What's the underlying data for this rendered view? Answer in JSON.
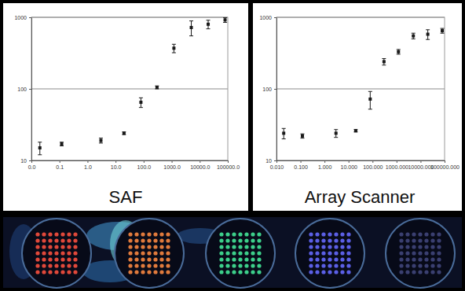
{
  "chart_data": [
    {
      "type": "scatter",
      "title": "SAF",
      "x": [
        0.02,
        0.12,
        3,
        20,
        80,
        300,
        1200,
        5000,
        20000,
        80000
      ],
      "values": [
        15,
        17,
        19,
        24,
        65,
        105,
        370,
        720,
        800,
        920
      ],
      "errors": [
        3,
        1,
        1.5,
        1,
        10,
        5,
        50,
        170,
        110,
        70
      ],
      "color": "#1a1a1a",
      "marker": "square",
      "log": true,
      "grid": true,
      "xlim": [
        0.01,
        100000
      ],
      "ylim": [
        10,
        1000
      ],
      "xticks": [
        {
          "value": 0.01,
          "label": "0.0"
        },
        {
          "value": 0.1,
          "label": "0.1"
        },
        {
          "value": 1,
          "label": "1.0"
        },
        {
          "value": 10,
          "label": "10.0"
        },
        {
          "value": 100,
          "label": "100.0"
        },
        {
          "value": 1000,
          "label": "1000.0"
        },
        {
          "value": 10000,
          "label": "10000.0"
        },
        {
          "value": 100000,
          "label": "100000.0"
        }
      ],
      "yticks": [
        10,
        100,
        1000
      ]
    },
    {
      "type": "scatter",
      "title": "Array Scanner",
      "x": [
        0.02,
        0.12,
        3,
        20,
        80,
        300,
        1200,
        5000,
        20000,
        80000
      ],
      "values": [
        24,
        22,
        24,
        26,
        72,
        240,
        330,
        550,
        580,
        650
      ],
      "errors": [
        4,
        1.5,
        3,
        1,
        20,
        25,
        25,
        50,
        90,
        50
      ],
      "color": "#1a1a1a",
      "marker": "square",
      "log": true,
      "grid": true,
      "xlim": [
        0.01,
        100000
      ],
      "ylim": [
        10,
        1000
      ],
      "xticks": [
        {
          "value": 0.01,
          "label": "0.010"
        },
        {
          "value": 0.1,
          "label": "0.100"
        },
        {
          "value": 1,
          "label": "1.000"
        },
        {
          "value": 10,
          "label": "10.000"
        },
        {
          "value": 100,
          "label": "100.000"
        },
        {
          "value": 1000,
          "label": "1000.000"
        },
        {
          "value": 10000,
          "label": "10000.000"
        },
        {
          "value": 100000,
          "label": "100000.000"
        }
      ],
      "yticks": [
        10,
        100,
        1000
      ]
    }
  ]
}
